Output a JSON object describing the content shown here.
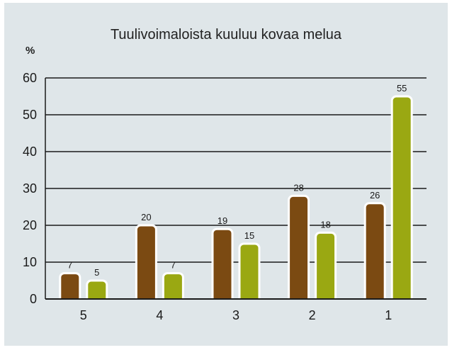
{
  "chart_data": {
    "type": "bar",
    "title": "Tuulivoimaloista kuuluu kovaa melua",
    "ylabel": "%",
    "xlabel": "",
    "ylim": [
      0,
      60
    ],
    "yticks": [
      0,
      10,
      20,
      30,
      40,
      50,
      60
    ],
    "categories": [
      "5",
      "4",
      "3",
      "2",
      "1"
    ],
    "grid": true,
    "series": [
      {
        "values": [
          7,
          20,
          19,
          28,
          26
        ],
        "color": "#7b4a12"
      },
      {
        "values": [
          5,
          7,
          15,
          18,
          55
        ],
        "color": "#9aa812"
      }
    ],
    "background_color": "#dfe6e9"
  }
}
